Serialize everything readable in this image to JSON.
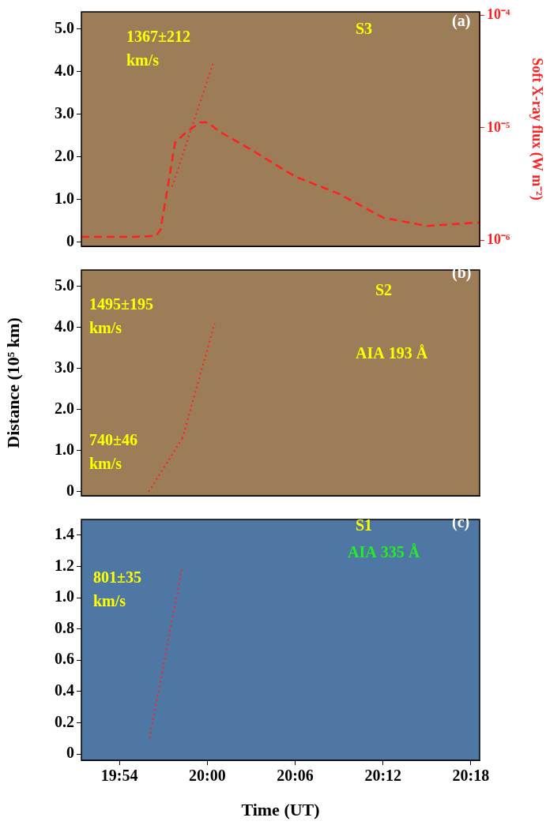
{
  "chart_data": [
    {
      "type": "line",
      "annotations": [
        "S3",
        "(a)",
        "1367±212 km/s"
      ],
      "xlim": [
        1191.4,
        1218.6
      ],
      "xticks": [
        {
          "value": 1194,
          "label": "19:54"
        },
        {
          "value": 1200,
          "label": "20:00"
        },
        {
          "value": 1206,
          "label": "20:06"
        },
        {
          "value": 1212,
          "label": "20:12"
        },
        {
          "value": 1218,
          "label": "20:18"
        }
      ],
      "ylim": [
        -0.1,
        5.4
      ],
      "yticks": [
        0,
        {
          "value": 1,
          "label": "1.0"
        },
        {
          "value": 2,
          "label": "2.0"
        },
        {
          "value": 3,
          "label": "3.0"
        },
        {
          "value": 4,
          "label": "4.0"
        },
        {
          "value": 5,
          "label": "5.0"
        }
      ],
      "y2label": "Soft X-ray flux (W m⁻²)",
      "y2lim": [
        8.9e-07,
        0.000107
      ],
      "y2ticks": [
        {
          "value": 1e-06,
          "label": "10⁻⁶"
        },
        {
          "value": 1e-05,
          "label": "10⁻⁵"
        },
        {
          "value": 0.0001,
          "label": "10⁻⁴"
        }
      ],
      "log": "y2",
      "grid": false,
      "tick_labels": "y",
      "series": [
        {
          "color": "#ff2020",
          "line_style": "dotted",
          "x": [
            1197.6,
            1200.4
          ],
          "values": [
            1.3,
            4.2
          ]
        },
        {
          "color": "#ff2020",
          "line_style": "dashed",
          "axis": "y2",
          "x": [
            1191.4,
            1193,
            1195,
            1196.5,
            1196.8,
            1197.3,
            1197.8,
            1198.5,
            1199.5,
            1200,
            1201,
            1203,
            1206,
            1209,
            1212,
            1215,
            1218.6
          ],
          "values": [
            1.08e-06,
            1.08e-06,
            1.08e-06,
            1.1e-06,
            1.25e-06,
            3e-06,
            7.4e-06,
            9e-06,
            1.12e-05,
            1.12e-05,
            9e-06,
            6.4e-06,
            3.7e-06,
            2.6e-06,
            1.6e-06,
            1.35e-06,
            1.45e-06
          ]
        }
      ]
    },
    {
      "type": "line",
      "annotations": [
        "S2",
        "AIA 193 Å",
        "(b)",
        "1495±195 km/s",
        "740±46 km/s"
      ],
      "ylabel": "Distance (10⁵ km)",
      "xlim": [
        1191.4,
        1218.6
      ],
      "xticks": [
        {
          "value": 1194,
          "label": "19:54"
        },
        {
          "value": 1200,
          "label": "20:00"
        },
        {
          "value": 1206,
          "label": "20:06"
        },
        {
          "value": 1212,
          "label": "20:12"
        },
        {
          "value": 1218,
          "label": "20:18"
        }
      ],
      "ylim": [
        -0.1,
        5.4
      ],
      "yticks": [
        0,
        {
          "value": 1,
          "label": "1.0"
        },
        {
          "value": 2,
          "label": "2.0"
        },
        {
          "value": 3,
          "label": "3.0"
        },
        {
          "value": 4,
          "label": "4.0"
        },
        {
          "value": 5,
          "label": "5.0"
        }
      ],
      "grid": false,
      "tick_labels": "y",
      "series": [
        {
          "color": "#ff2020",
          "line_style": "dotted",
          "x": [
            1196.0,
            1198.3
          ],
          "values": [
            0,
            1.3
          ]
        },
        {
          "color": "#ff2020",
          "line_style": "dotted",
          "x": [
            1198.3,
            1200.5
          ],
          "values": [
            1.3,
            4.1
          ]
        }
      ]
    },
    {
      "type": "line",
      "annotations": [
        "S1",
        "AIA 335 Å",
        "(c)",
        "801±35 km/s"
      ],
      "xlabel": "Time (UT)",
      "xlim": [
        1191.4,
        1218.6
      ],
      "xticks": [
        {
          "value": 1194,
          "label": "19:54"
        },
        {
          "value": 1200,
          "label": "20:00"
        },
        {
          "value": 1206,
          "label": "20:06"
        },
        {
          "value": 1212,
          "label": "20:12"
        },
        {
          "value": 1218,
          "label": "20:18"
        }
      ],
      "ylim": [
        -0.04,
        1.5
      ],
      "yticks": [
        0,
        0.2,
        0.4,
        0.6,
        0.8,
        {
          "value": 1,
          "label": "1.0"
        },
        1.2,
        1.4
      ],
      "grid": false,
      "series": [
        {
          "color": "#ff2020",
          "line_style": "dotted",
          "x": [
            1196.05,
            1198.3
          ],
          "values": [
            0.1,
            1.2
          ]
        }
      ]
    }
  ]
}
